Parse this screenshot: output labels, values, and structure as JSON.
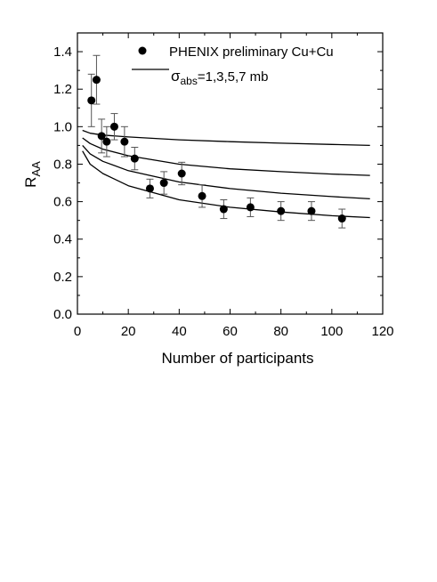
{
  "chart_data": {
    "type": "scatter",
    "xlabel": "Number of participants",
    "ylabel": {
      "main": "R",
      "sub": "AA"
    },
    "xlim": [
      0,
      120
    ],
    "ylim": [
      0,
      1.5
    ],
    "xticks": [
      "0",
      "20",
      "40",
      "60",
      "80",
      "100",
      "120"
    ],
    "yticks": [
      "0.0",
      "0.2",
      "0.4",
      "0.6",
      "0.8",
      "1.0",
      "1.2",
      "1.4"
    ],
    "xtick_values": [
      0,
      20,
      40,
      60,
      80,
      100,
      120
    ],
    "ytick_values": [
      0,
      0.2,
      0.4,
      0.6,
      0.8,
      1.0,
      1.2,
      1.4
    ],
    "grid": false,
    "legend": {
      "placement": "top-right",
      "data_label": "PHENIX preliminary Cu+Cu",
      "curve_label": {
        "symbol": "σ",
        "sub": "abs",
        "text": "=1,3,5,7 mb"
      }
    },
    "data_points": {
      "name": "PHENIX preliminary Cu+Cu",
      "x": [
        5.5,
        7.5,
        9.5,
        11.5,
        14.5,
        18.5,
        22.5,
        28.5,
        34.0,
        41.0,
        49.0,
        57.5,
        68.0,
        80.0,
        92.0,
        104.0
      ],
      "y": [
        1.14,
        1.25,
        0.95,
        0.92,
        1.0,
        0.92,
        0.83,
        0.67,
        0.7,
        0.75,
        0.63,
        0.56,
        0.57,
        0.55,
        0.55,
        0.51
      ],
      "err": [
        0.14,
        0.13,
        0.09,
        0.08,
        0.07,
        0.08,
        0.06,
        0.05,
        0.06,
        0.06,
        0.06,
        0.05,
        0.05,
        0.05,
        0.05,
        0.05
      ]
    },
    "curves": [
      {
        "sigma_abs_mb": 1,
        "x": [
          2,
          5,
          10,
          20,
          40,
          60,
          80,
          100,
          115
        ],
        "y": [
          0.98,
          0.965,
          0.955,
          0.945,
          0.93,
          0.92,
          0.912,
          0.905,
          0.9
        ]
      },
      {
        "sigma_abs_mb": 3,
        "x": [
          2,
          5,
          10,
          20,
          40,
          60,
          80,
          100,
          115
        ],
        "y": [
          0.94,
          0.91,
          0.88,
          0.845,
          0.8,
          0.775,
          0.76,
          0.747,
          0.74
        ]
      },
      {
        "sigma_abs_mb": 5,
        "x": [
          2,
          5,
          10,
          20,
          40,
          60,
          80,
          100,
          115
        ],
        "y": [
          0.9,
          0.855,
          0.815,
          0.765,
          0.705,
          0.67,
          0.645,
          0.627,
          0.615
        ]
      },
      {
        "sigma_abs_mb": 7,
        "x": [
          2,
          5,
          10,
          20,
          40,
          60,
          80,
          100,
          115
        ],
        "y": [
          0.87,
          0.8,
          0.75,
          0.685,
          0.61,
          0.57,
          0.545,
          0.525,
          0.515
        ]
      }
    ]
  }
}
